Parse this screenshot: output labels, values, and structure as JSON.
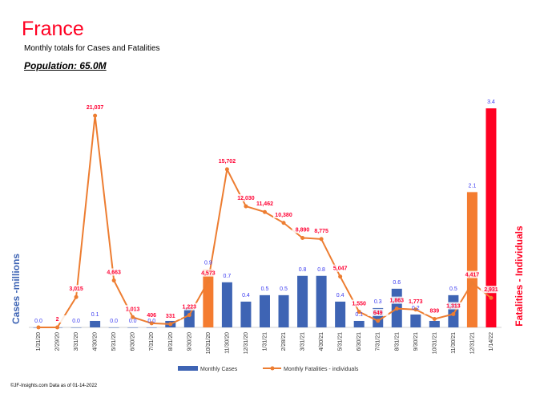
{
  "header": {
    "title": "France",
    "subtitle": "Monthly totals for Cases and Fatalities",
    "population": "Population: 65.0M"
  },
  "footer": "©JF-Insights.com  Data as of 01-14-2022",
  "colors": {
    "cases_bar": "#3e64b4",
    "highlight_bar": "#f47c30",
    "latest_bar": "#ff0022",
    "fatalities_line": "#ed7d31",
    "cases_label": "#3a3af0",
    "fatalities_label": "#ff0033"
  },
  "chart_data": {
    "type": "bar+line",
    "categories": [
      "1/31/20",
      "2/29/20",
      "3/31/20",
      "4/30/20",
      "5/31/20",
      "6/30/20",
      "7/31/20",
      "8/31/20",
      "9/30/20",
      "10/31/20",
      "11/30/20",
      "12/31/20",
      "1/31/21",
      "2/28/21",
      "3/31/21",
      "4/30/21",
      "5/31/21",
      "6/30/21",
      "7/31/21",
      "8/31/21",
      "9/30/21",
      "10/31/21",
      "11/30/21",
      "12/31/21",
      "1/14/22"
    ],
    "series": [
      {
        "name": "Monthly Cases",
        "type": "bar",
        "axis": "left",
        "values": [
          0.0,
          0.0,
          0.0,
          0.1,
          0.0,
          0.0,
          0.0,
          0.1,
          0.3,
          0.9,
          0.7,
          0.4,
          0.5,
          0.5,
          0.8,
          0.8,
          0.4,
          0.1,
          0.3,
          0.6,
          0.2,
          0.1,
          0.5,
          2.1,
          3.4
        ],
        "labels": [
          "0.0",
          "",
          "0.0",
          "0.1",
          "0.0",
          "0.0",
          "0.0",
          "",
          "",
          "0.9",
          "0.7",
          "0.4",
          "0.5",
          "0.5",
          "0.8",
          "0.8",
          "0.4",
          "0.1",
          "0.3",
          "0.6",
          "0.2",
          "",
          "0.5",
          "2.1",
          "3.4"
        ],
        "highlight": {
          "9": "highlight_bar",
          "23": "highlight_bar",
          "24": "latest_bar"
        }
      },
      {
        "name": "Monthly Fatalities - individuals",
        "type": "line",
        "axis": "right",
        "values": [
          0,
          2,
          3015,
          21037,
          4663,
          1013,
          406,
          331,
          1223,
          4573,
          15702,
          12030,
          11462,
          10380,
          8890,
          8775,
          5047,
          1550,
          649,
          1863,
          1773,
          839,
          1313,
          4417,
          2931
        ],
        "labels": [
          "",
          "2",
          "3,015",
          "21,037",
          "4,663",
          "1,013",
          "406",
          "331",
          "1,223",
          "4,573",
          "15,702",
          "12,030",
          "11,462",
          "10,380",
          "8,890",
          "8,775",
          "5,047",
          "1,550",
          "649",
          "1,863",
          "1,773",
          "839",
          "1,313",
          "4,417",
          "2,931"
        ]
      }
    ],
    "ylabel_left": "Cases -millions",
    "ylabel_right": "Fatalities - Individuals",
    "ylim_left": [
      0,
      3.5
    ],
    "ylim_right": [
      0,
      22000
    ],
    "grid": false,
    "legend": "bottom"
  }
}
